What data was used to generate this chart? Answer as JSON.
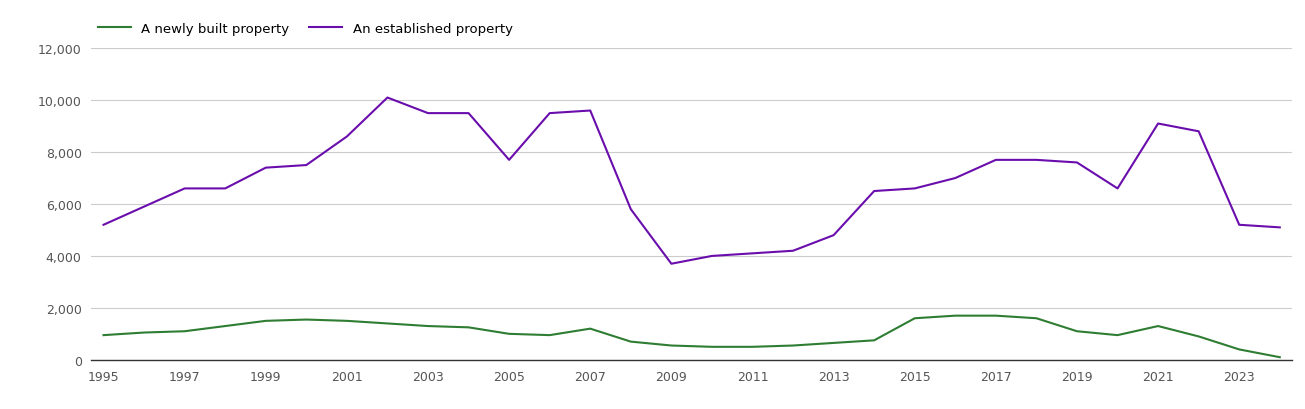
{
  "years": [
    1995,
    1996,
    1997,
    1998,
    1999,
    2000,
    2001,
    2002,
    2003,
    2004,
    2005,
    2006,
    2007,
    2008,
    2009,
    2010,
    2011,
    2012,
    2013,
    2014,
    2015,
    2016,
    2017,
    2018,
    2019,
    2020,
    2021,
    2022,
    2023,
    2024
  ],
  "new_homes": [
    950,
    1050,
    1100,
    1300,
    1500,
    1550,
    1500,
    1400,
    1300,
    1250,
    1000,
    950,
    1200,
    700,
    550,
    500,
    500,
    550,
    650,
    750,
    1600,
    1700,
    1700,
    1600,
    1100,
    950,
    1300,
    900,
    400,
    100
  ],
  "established_homes": [
    5200,
    5900,
    6600,
    6600,
    7400,
    7500,
    8600,
    10100,
    9500,
    9500,
    7700,
    9500,
    9600,
    5800,
    3700,
    4000,
    4100,
    4200,
    4800,
    6500,
    6600,
    7000,
    7700,
    7700,
    7600,
    6600,
    9100,
    8800,
    5200,
    5100
  ],
  "new_color": "#2e7d32",
  "established_color": "#6a0dad",
  "new_label": "A newly built property",
  "established_label": "An established property",
  "ylim": [
    0,
    12000
  ],
  "yticks": [
    0,
    2000,
    4000,
    6000,
    8000,
    10000,
    12000
  ],
  "xtick_step": 2,
  "background_color": "#ffffff",
  "grid_color": "#cccccc"
}
